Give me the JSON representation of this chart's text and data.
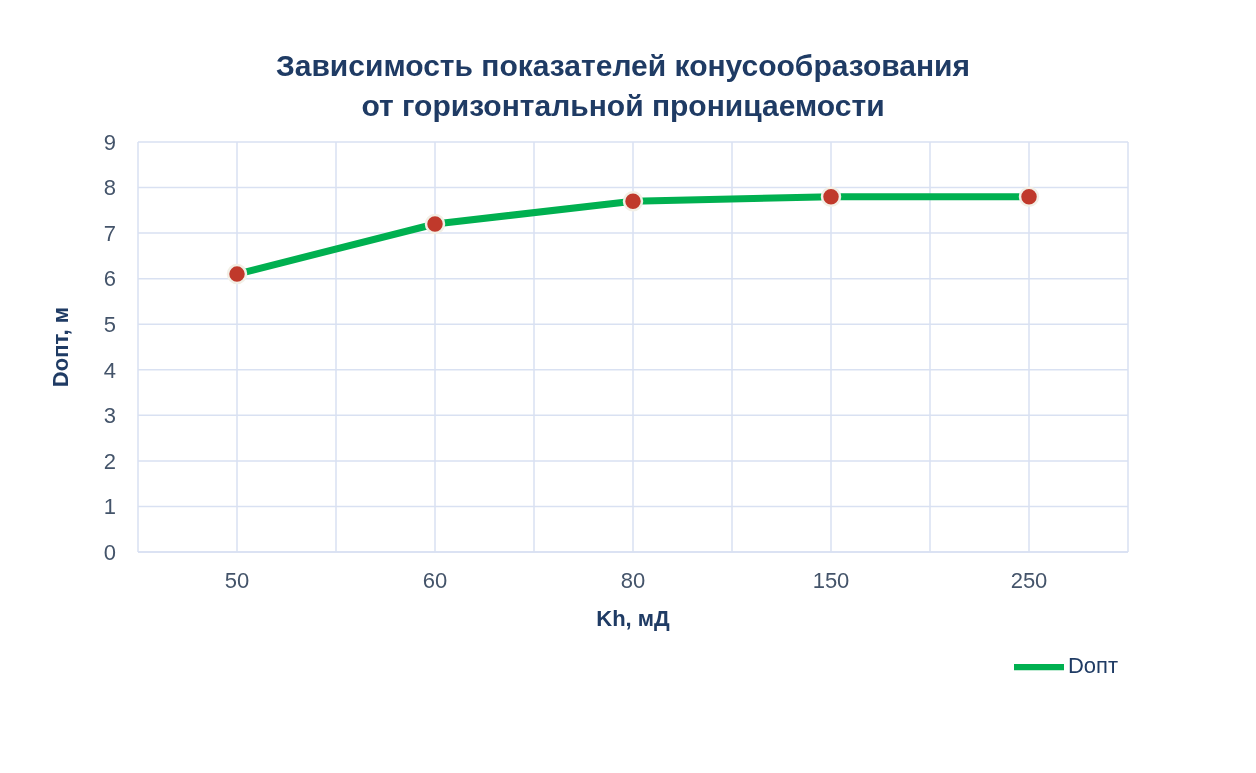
{
  "chart_data": {
    "type": "line",
    "title": "Зависимость показателей конусообразования от горизонтальной проницаемости",
    "xlabel": "Kh, мД",
    "ylabel": "Dопт, м",
    "categories": [
      "50",
      "60",
      "80",
      "150",
      "250"
    ],
    "series": [
      {
        "name": "Dопт",
        "color": "#00b050",
        "values": [
          6.1,
          7.2,
          7.7,
          7.8,
          7.8
        ]
      }
    ],
    "ylim": [
      0,
      9
    ],
    "yticks": [
      0,
      1,
      2,
      3,
      4,
      5,
      6,
      7,
      8,
      9
    ],
    "grid": true,
    "legend": "bottom right",
    "marker": "circle",
    "line_style": "solid"
  }
}
